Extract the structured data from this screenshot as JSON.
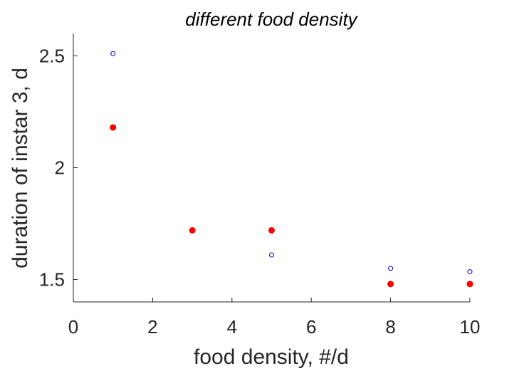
{
  "chart_data": {
    "type": "scatter",
    "title": "different food density",
    "xlabel": "food density, #/d",
    "ylabel": "duration of instar 3, d",
    "xlim": [
      0,
      10
    ],
    "ylim": [
      1.4,
      2.6
    ],
    "x_ticks": [
      0,
      2,
      4,
      6,
      8,
      10
    ],
    "x_tick_labels": [
      "0",
      "2",
      "4",
      "6",
      "8",
      "10"
    ],
    "y_ticks": [
      1.5,
      2.0,
      2.5
    ],
    "y_tick_labels": [
      "1.5",
      "2",
      "2.5"
    ],
    "grid": false,
    "axis_color": "#262626",
    "series": [
      {
        "marker": "open-circle",
        "color": "#0000cc",
        "x": [
          1,
          5,
          8,
          10
        ],
        "y": [
          2.51,
          1.61,
          1.55,
          1.535
        ]
      },
      {
        "marker": "filled-circle",
        "color": "#ff0000",
        "x": [
          1,
          3,
          5,
          8,
          10
        ],
        "y": [
          2.18,
          1.72,
          1.72,
          1.48,
          1.48
        ]
      }
    ]
  }
}
